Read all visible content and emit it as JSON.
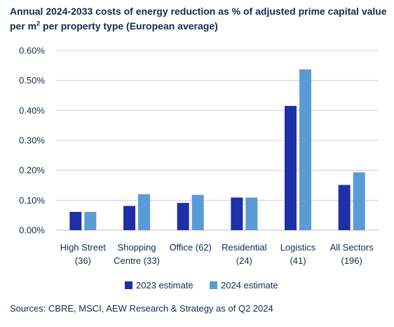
{
  "chart_data": {
    "type": "bar",
    "title_before_sup": "Annual 2024-2033 costs of energy reduction as % of adjusted prime capital value per m",
    "title_sup": "2",
    "title_after_sup": " per property type (European average)",
    "categories": [
      [
        "High Street",
        "(36)"
      ],
      [
        "Shopping",
        "Centre (33)"
      ],
      [
        "Office (62)"
      ],
      [
        "Residential",
        "(24)"
      ],
      [
        "Logistics",
        "(41)"
      ],
      [
        "All Sectors",
        "(196)"
      ]
    ],
    "series": [
      {
        "name": "2023 estimate",
        "color": "#1f2fa8",
        "values": [
          0.061,
          0.081,
          0.091,
          0.109,
          0.415,
          0.151
        ]
      },
      {
        "name": "2024 estimate",
        "color": "#5b9bd5",
        "values": [
          0.061,
          0.12,
          0.118,
          0.109,
          0.537,
          0.193
        ]
      }
    ],
    "ylim": [
      0,
      0.6
    ],
    "yticks": [
      "0.00%",
      "0.10%",
      "0.20%",
      "0.30%",
      "0.40%",
      "0.50%",
      "0.60%"
    ],
    "grid": true,
    "legend_position": "bottom",
    "source": "Sources: CBRE, MSCI, AEW Research & Strategy as of Q2 2024"
  }
}
